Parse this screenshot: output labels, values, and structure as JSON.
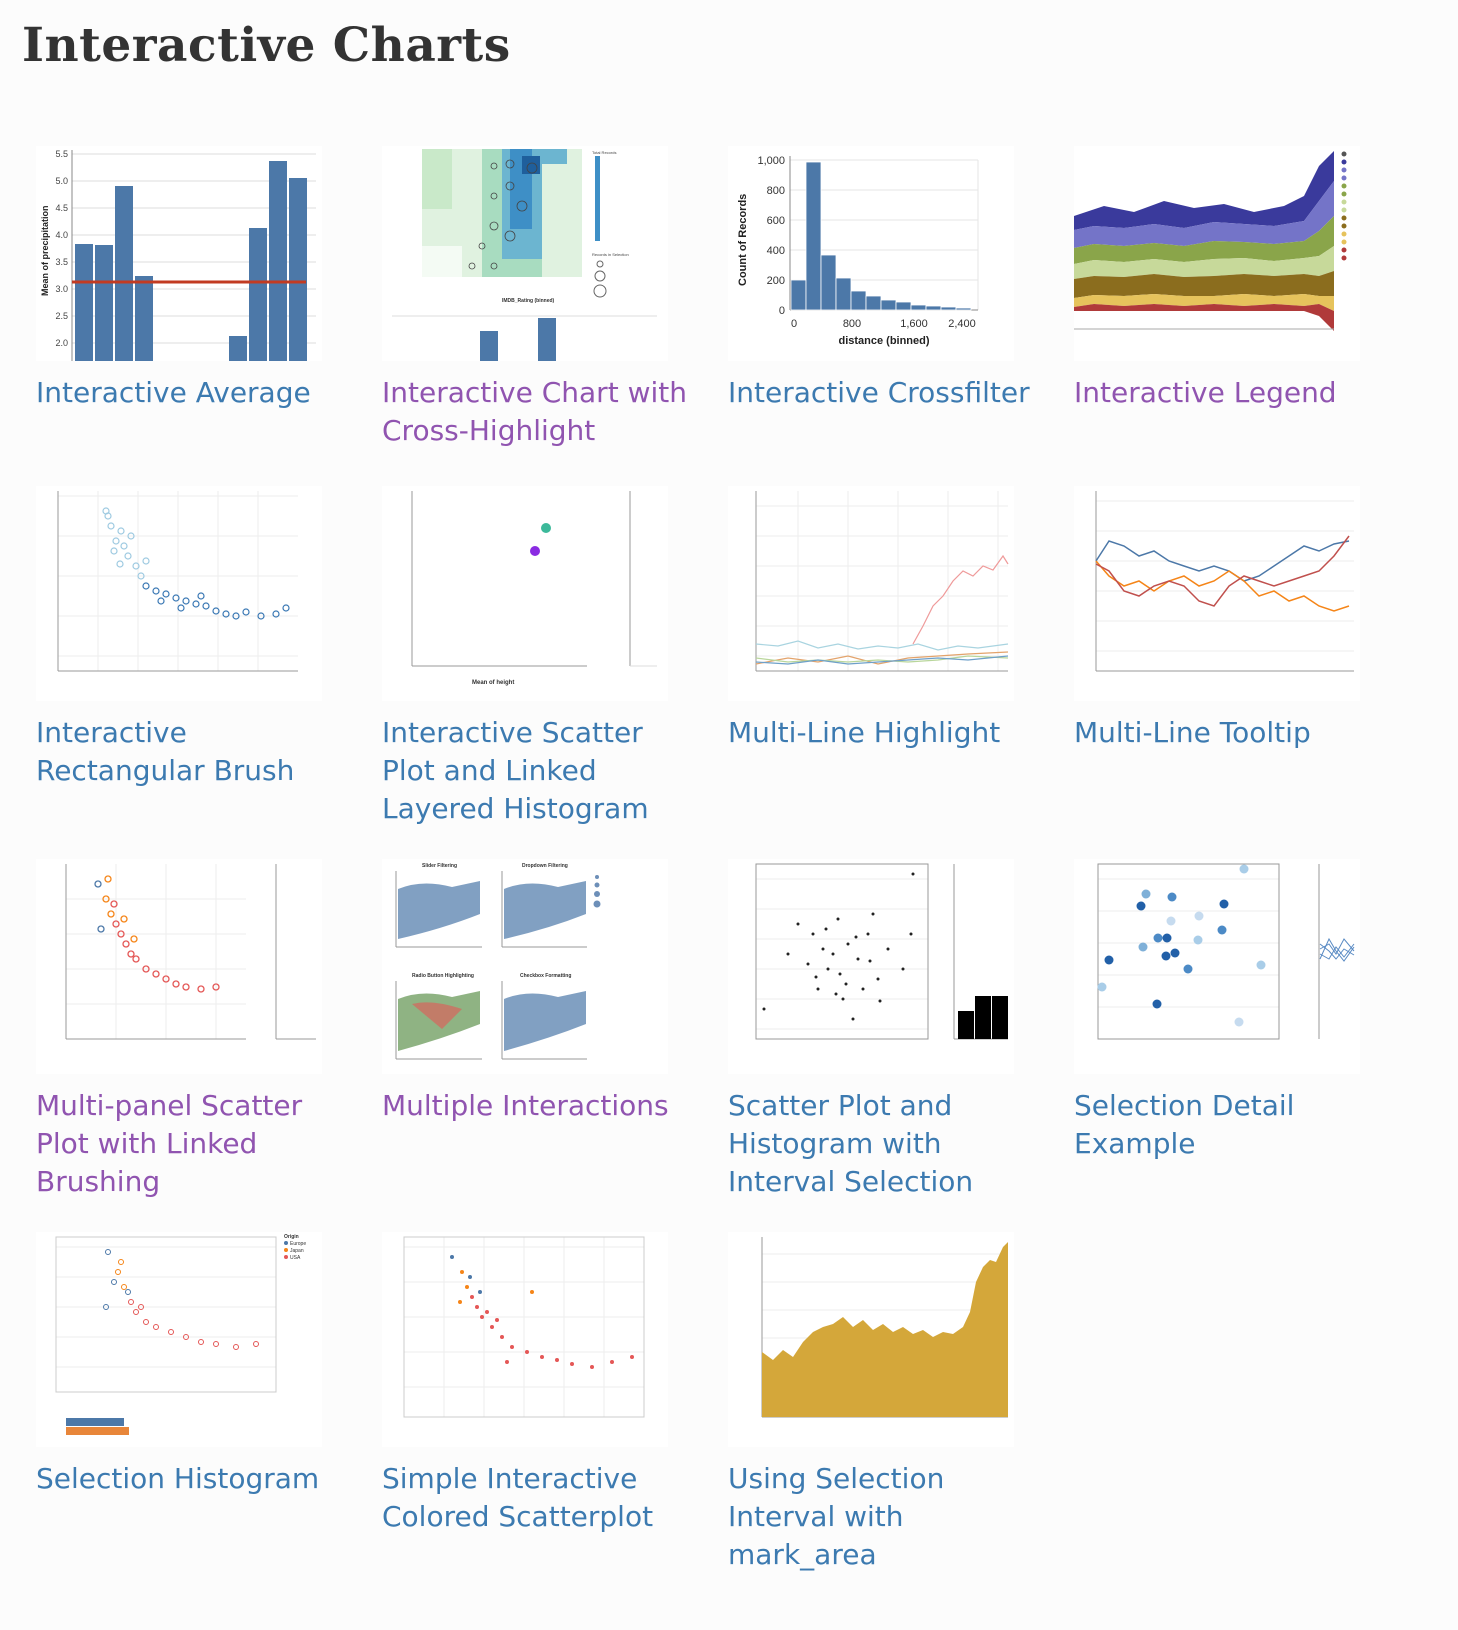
{
  "page": {
    "title": "Interactive Charts"
  },
  "colors": {
    "link": "#3c7ab0",
    "visited_link": "#9054b0",
    "bar": "#4c78a8",
    "rule": "#c23b22"
  },
  "items": [
    {
      "label": "Interactive Average",
      "visited": false,
      "icon": "bar-chart-with-average-rule"
    },
    {
      "label": "Interactive Chart with Cross-Highlight",
      "visited": true,
      "icon": "heatmap-with-histogram"
    },
    {
      "label": "Interactive Crossfilter",
      "visited": false,
      "icon": "histogram"
    },
    {
      "label": "Interactive Legend",
      "visited": true,
      "icon": "streamgraph"
    },
    {
      "label": "Interactive Rectangular Brush",
      "visited": false,
      "icon": "scatter-plot"
    },
    {
      "label": "Interactive Scatter Plot and Linked Layered Histogram",
      "visited": false,
      "icon": "scatter-with-histogram"
    },
    {
      "label": "Multi-Line Highlight",
      "visited": false,
      "icon": "multi-line-chart"
    },
    {
      "label": "Multi-Line Tooltip",
      "visited": false,
      "icon": "multi-line-chart"
    },
    {
      "label": "Multi-panel Scatter Plot with Linked Brushing",
      "visited": true,
      "icon": "scatter-plot"
    },
    {
      "label": "Multiple Interactions",
      "visited": true,
      "icon": "scatter-grid"
    },
    {
      "label": "Scatter Plot and Histogram with Interval Selection",
      "visited": false,
      "icon": "scatter-with-histogram"
    },
    {
      "label": "Selection Detail Example",
      "visited": false,
      "icon": "scatter-with-lines"
    },
    {
      "label": "Selection Histogram",
      "visited": false,
      "icon": "scatter-with-bars"
    },
    {
      "label": "Simple Interactive Colored Scatterplot",
      "visited": false,
      "icon": "scatter-plot"
    },
    {
      "label": "Using Selection Interval with mark_area",
      "visited": false,
      "icon": "area-chart"
    }
  ]
}
